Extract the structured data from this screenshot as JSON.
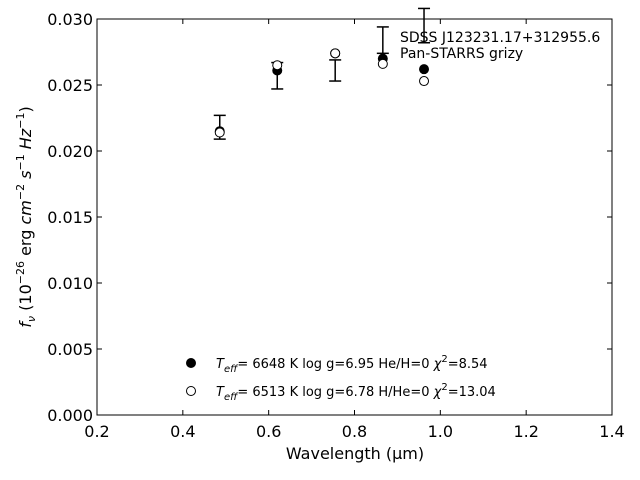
{
  "chart_data": {
    "type": "scatter",
    "xlabel": "Wavelength (μm)",
    "xlim": [
      0.2,
      1.4
    ],
    "ylim": [
      0.0,
      0.03
    ],
    "x_ticks": [
      "0.2",
      "0.4",
      "0.6",
      "0.8",
      "1.0",
      "1.2",
      "1.4"
    ],
    "y_ticks": [
      "0.000",
      "0.005",
      "0.010",
      "0.015",
      "0.020",
      "0.025",
      "0.030"
    ],
    "ylabel": {
      "f": "f",
      "nu": "ν",
      "open": " (10",
      "exp_neg26": "−26",
      "erg": " erg ",
      "cm": "cm",
      "exp_neg2": "−2",
      "s": " s",
      "exp_neg1a": "−1",
      "hz": " Hz",
      "exp_neg1b": "−1",
      "close": ")"
    },
    "annotations": [
      "SDSS J123231.17+312955.6",
      "Pan-STARRS grizy"
    ],
    "grid": false,
    "legend_placement": "bottom-center",
    "observed": {
      "x": [
        0.486,
        0.62,
        0.755,
        0.866,
        0.962
      ],
      "y": [
        0.0218,
        0.0257,
        0.0261,
        0.0284,
        0.0295
      ],
      "yerr": [
        0.0009,
        0.001,
        0.0008,
        0.001,
        0.0013
      ]
    },
    "series": [
      {
        "label": {
          "T": "T",
          "eff": "eff",
          "rest": "=  6648 K  log g=6.95  He/H=0  ",
          "chi": "χ",
          "sq": "2",
          "val": "=8.54"
        },
        "marker": "filled-circle",
        "color": "#000000",
        "x": [
          0.486,
          0.62,
          0.755,
          0.866,
          0.962
        ],
        "y": [
          0.0215,
          0.0261,
          0.0274,
          0.027,
          0.0262
        ]
      },
      {
        "label": {
          "T": "T",
          "eff": "eff",
          "rest": "=  6513 K  log g=6.78  H/He=0  ",
          "chi": "χ",
          "sq": "2",
          "val": "=13.04"
        },
        "marker": "open-circle",
        "color": "#000000",
        "x": [
          0.486,
          0.62,
          0.755,
          0.866,
          0.962
        ],
        "y": [
          0.0214,
          0.0265,
          0.0274,
          0.0266,
          0.0253
        ]
      }
    ]
  }
}
